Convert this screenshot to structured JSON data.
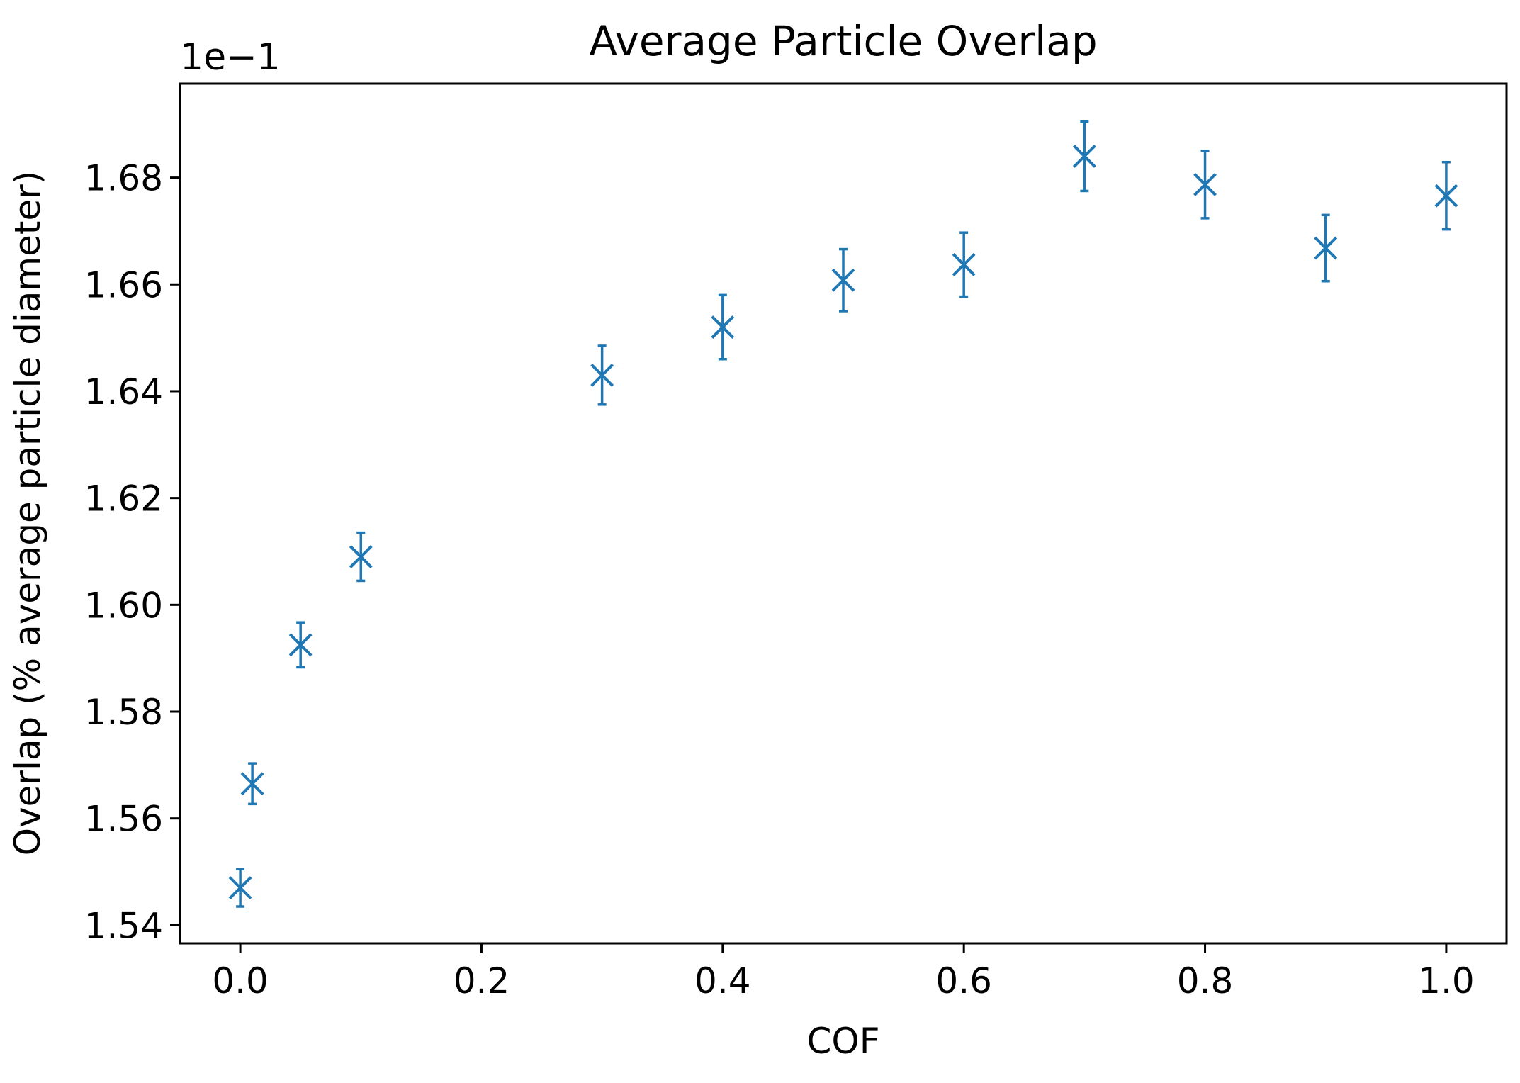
{
  "chart_data": {
    "type": "scatter",
    "title": "Average Particle Overlap",
    "xlabel": "COF",
    "ylabel": "Overlap (% average particle diameter)",
    "offset_text": "1e−1",
    "marker": "x",
    "error_bars": true,
    "grid": false,
    "legend": "none",
    "xlim": [
      -0.05,
      1.05
    ],
    "ylim": [
      15.366,
      16.976
    ],
    "x_ticks": [
      0.0,
      0.2,
      0.4,
      0.6,
      0.8,
      1.0
    ],
    "x_tick_labels": [
      "0.0",
      "0.2",
      "0.4",
      "0.6",
      "0.8",
      "1.0"
    ],
    "y_ticks": [
      15.4,
      15.6,
      15.8,
      16.0,
      16.2,
      16.4,
      16.6,
      16.8
    ],
    "y_tick_labels": [
      "1.54",
      "1.56",
      "1.58",
      "1.60",
      "1.62",
      "1.64",
      "1.66",
      "1.68"
    ],
    "series": [
      {
        "color": "#1f77b4",
        "points": [
          {
            "x": 0.0,
            "y": 15.47,
            "err": 0.035
          },
          {
            "x": 0.01,
            "y": 15.665,
            "err": 0.038
          },
          {
            "x": 0.05,
            "y": 15.925,
            "err": 0.042
          },
          {
            "x": 0.1,
            "y": 16.09,
            "err": 0.045
          },
          {
            "x": 0.3,
            "y": 16.43,
            "err": 0.055
          },
          {
            "x": 0.4,
            "y": 16.52,
            "err": 0.06
          },
          {
            "x": 0.5,
            "y": 16.608,
            "err": 0.058
          },
          {
            "x": 0.6,
            "y": 16.637,
            "err": 0.06
          },
          {
            "x": 0.7,
            "y": 16.84,
            "err": 0.065
          },
          {
            "x": 0.8,
            "y": 16.787,
            "err": 0.063
          },
          {
            "x": 0.9,
            "y": 16.668,
            "err": 0.062
          },
          {
            "x": 1.0,
            "y": 16.766,
            "err": 0.063
          }
        ]
      }
    ]
  }
}
